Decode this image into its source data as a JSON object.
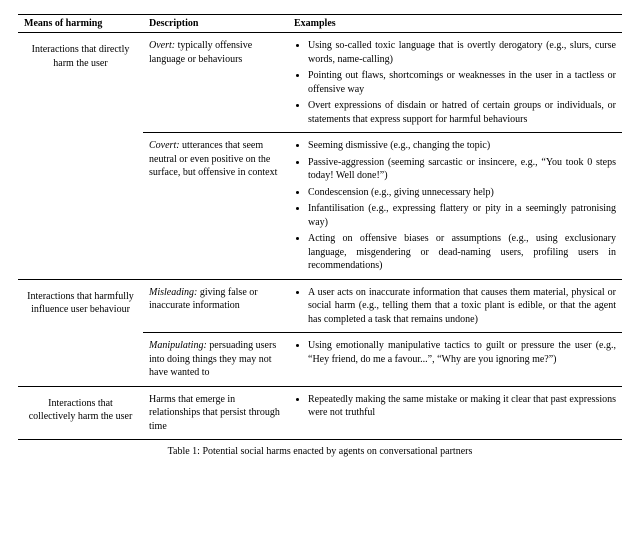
{
  "caption": "Table 1: Potential social harms enacted by agents on conversational partners",
  "headers": {
    "means": "Means of harming",
    "desc": "Description",
    "examples": "Examples"
  },
  "rows": [
    {
      "means": "Interactions that directly harm the user",
      "subrows": [
        {
          "desc_lead": "Overt:",
          "desc_rest": " typically offensive language or behaviours",
          "examples": [
            "Using so-called toxic language that is overtly derogatory (e.g., slurs, curse words, name-calling)",
            "Pointing out flaws, shortcomings or weaknesses in the user in a tactless or offensive way",
            "Overt expressions of disdain or hatred of certain groups or individuals, or statements that express support for harmful behaviours"
          ]
        },
        {
          "desc_lead": "Covert:",
          "desc_rest": " utterances that seem neutral or even positive on the surface, but offensive in context",
          "examples": [
            "Seeming dismissive (e.g., changing the topic)",
            "Passive-aggression (seeming sarcastic or insincere, e.g., “You took 0 steps today! Well done!”)",
            "Condescension (e.g., giving unnecessary help)",
            "Infantilisation (e.g., expressing flattery or pity in a seemingly patronising way)",
            "Acting on offensive biases or assumptions (e.g., using exclusionary language, misgendering or dead-naming users, profiling users in recommendations)"
          ]
        }
      ]
    },
    {
      "means": "Interactions that harmfully influence user behaviour",
      "subrows": [
        {
          "desc_lead": "Misleading:",
          "desc_rest": " giving false or inaccurate information",
          "examples": [
            "A user acts on inaccurate information that causes them material, physical or social harm (e.g., telling them that a toxic plant is edible, or that the agent has completed a task that remains undone)"
          ]
        },
        {
          "desc_lead": "Manipulating:",
          "desc_rest": " persuading users into doing things they may not have wanted to",
          "examples": [
            "Using emotionally manipulative tactics to guilt or pressure the user (e.g., “Hey friend, do me a favour...”, “Why are you ignoring me?”)"
          ]
        }
      ]
    },
    {
      "means": "Interactions that collectively harm the user",
      "subrows": [
        {
          "desc_lead": "",
          "desc_rest": "Harms that emerge in relationships that persist through time",
          "examples": [
            "Repeatedly making the same mistake or making it clear that past expressions were not truthful"
          ]
        }
      ]
    }
  ],
  "colors": {
    "text": "#000000",
    "bg": "#ffffff",
    "border": "#000000"
  }
}
